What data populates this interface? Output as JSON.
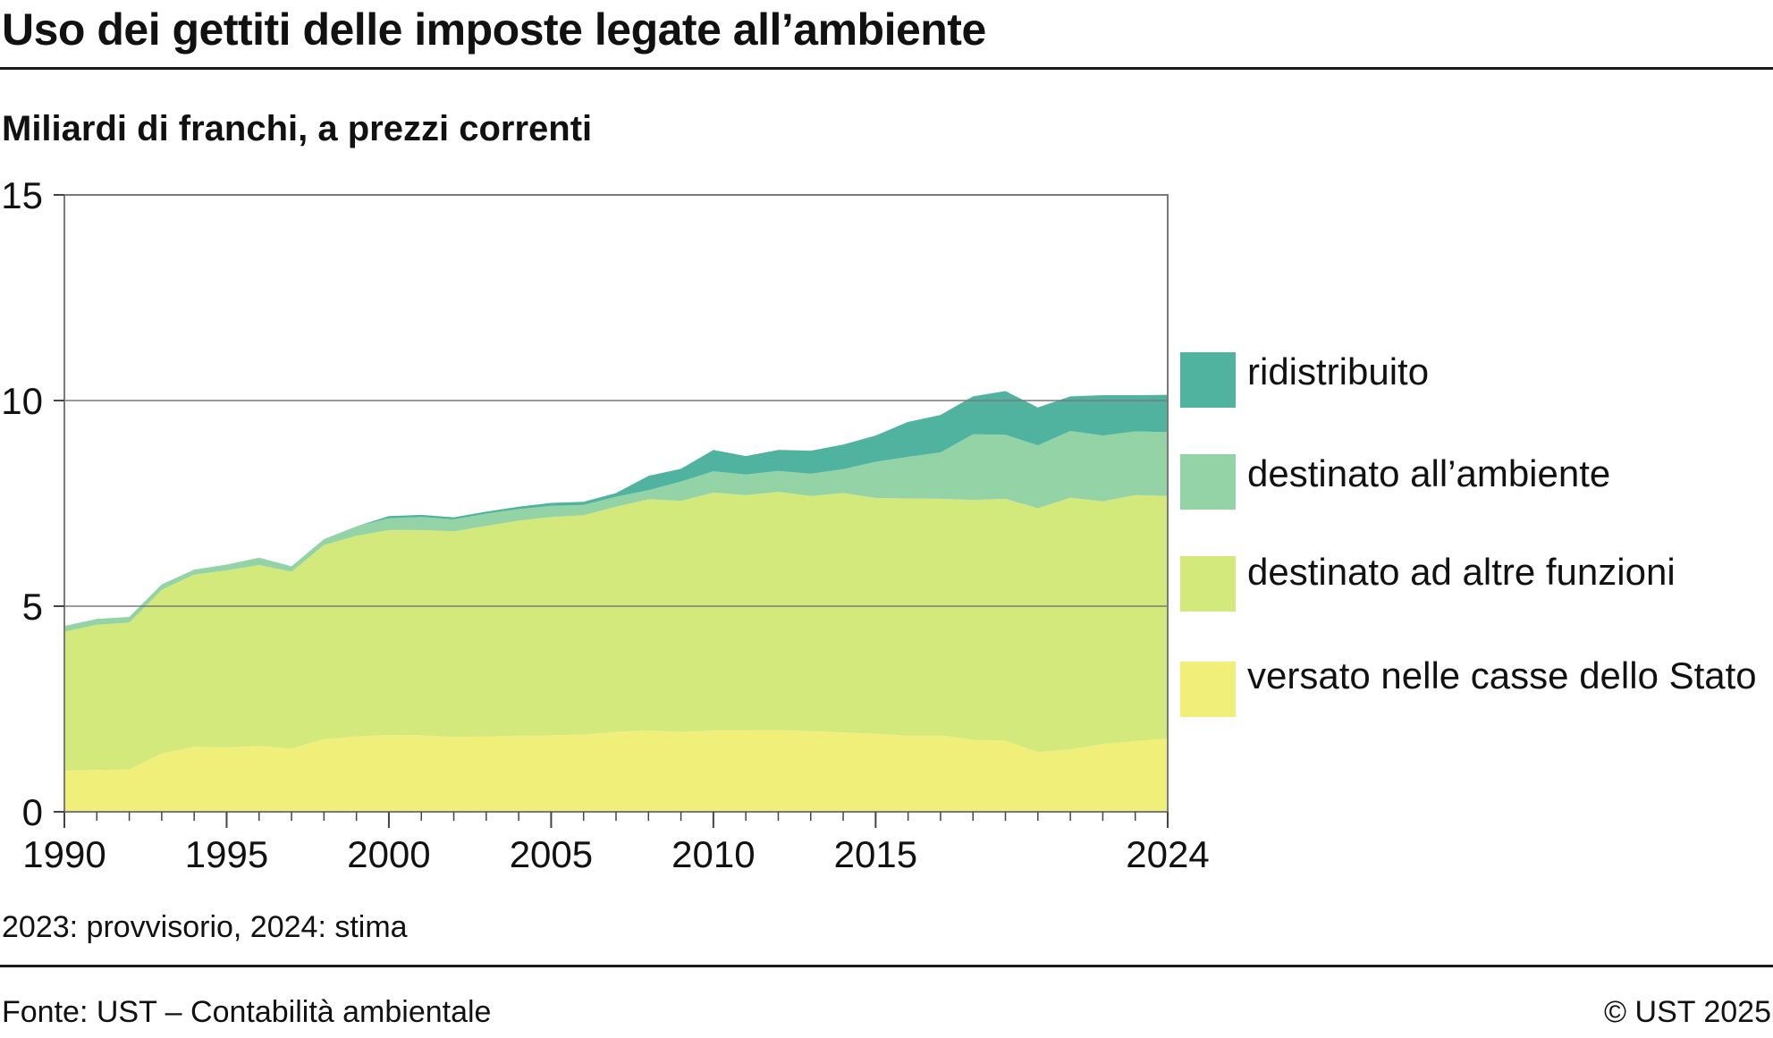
{
  "header": {
    "title": "Uso dei gettiti delle imposte legate all’ambiente",
    "subtitle": "Miliardi di franchi, a prezzi correnti"
  },
  "footer": {
    "note": "2023: provvisorio, 2024: stima",
    "source": "Fonte: UST – Contabilità ambientale",
    "copyright": "© UST 2025"
  },
  "chart_data": {
    "type": "area",
    "stacked": true,
    "title": "Uso dei gettiti delle imposte legate all’ambiente",
    "subtitle": "Miliardi di franchi, a prezzi correnti",
    "xlabel": "",
    "ylabel": "",
    "xlim": [
      1990,
      2024
    ],
    "ylim": [
      0,
      15
    ],
    "y_ticks": [
      "0",
      "5",
      "10",
      "15"
    ],
    "x_ticks": [
      "1990",
      "1995",
      "2000",
      "2005",
      "2010",
      "2015",
      "2024"
    ],
    "x_tick_values": [
      1990,
      1995,
      2000,
      2005,
      2010,
      2015,
      2024
    ],
    "grid": "horizontal",
    "legend_position": "right",
    "x": [
      1990,
      1991,
      1992,
      1993,
      1994,
      1995,
      1996,
      1997,
      1998,
      1999,
      2000,
      2001,
      2002,
      2003,
      2004,
      2005,
      2006,
      2007,
      2008,
      2009,
      2010,
      2011,
      2012,
      2013,
      2014,
      2015,
      2016,
      2017,
      2018,
      2019,
      2020,
      2021,
      2022,
      2023,
      2024
    ],
    "series": [
      {
        "name": "versato nelle casse dello Stato",
        "color": "#f0ef79",
        "values": [
          1.0,
          1.02,
          1.03,
          1.42,
          1.58,
          1.57,
          1.6,
          1.54,
          1.77,
          1.83,
          1.87,
          1.86,
          1.82,
          1.83,
          1.85,
          1.86,
          1.88,
          1.94,
          1.98,
          1.94,
          1.98,
          1.98,
          1.99,
          1.96,
          1.93,
          1.9,
          1.85,
          1.86,
          1.75,
          1.73,
          1.45,
          1.52,
          1.65,
          1.72,
          1.78
        ]
      },
      {
        "name": "destinato ad altre funzioni",
        "color": "#d3e97b",
        "values": [
          3.38,
          3.53,
          3.57,
          3.98,
          4.19,
          4.3,
          4.4,
          4.3,
          4.72,
          4.88,
          4.98,
          4.99,
          5.0,
          5.12,
          5.23,
          5.31,
          5.33,
          5.48,
          5.62,
          5.62,
          5.78,
          5.72,
          5.79,
          5.72,
          5.82,
          5.73,
          5.77,
          5.75,
          5.83,
          5.88,
          5.93,
          6.12,
          5.9,
          5.98,
          5.9
        ]
      },
      {
        "name": "destinato all’ambiente",
        "color": "#93d3a5",
        "values": [
          0.14,
          0.14,
          0.14,
          0.13,
          0.12,
          0.14,
          0.18,
          0.13,
          0.14,
          0.23,
          0.29,
          0.32,
          0.29,
          0.3,
          0.28,
          0.27,
          0.25,
          0.24,
          0.22,
          0.47,
          0.52,
          0.5,
          0.51,
          0.54,
          0.58,
          0.88,
          1.01,
          1.13,
          1.6,
          1.56,
          1.53,
          1.62,
          1.6,
          1.55,
          1.55
        ]
      },
      {
        "name": "ridistribuito",
        "color": "#4fb3a0",
        "values": [
          0,
          0,
          0,
          0,
          0,
          0,
          0,
          0,
          0,
          0,
          0.05,
          0.05,
          0.05,
          0.05,
          0.06,
          0.07,
          0.08,
          0.09,
          0.35,
          0.31,
          0.52,
          0.45,
          0.51,
          0.56,
          0.6,
          0.64,
          0.85,
          0.91,
          0.92,
          1.06,
          0.92,
          0.84,
          0.98,
          0.88,
          0.91
        ]
      }
    ]
  }
}
